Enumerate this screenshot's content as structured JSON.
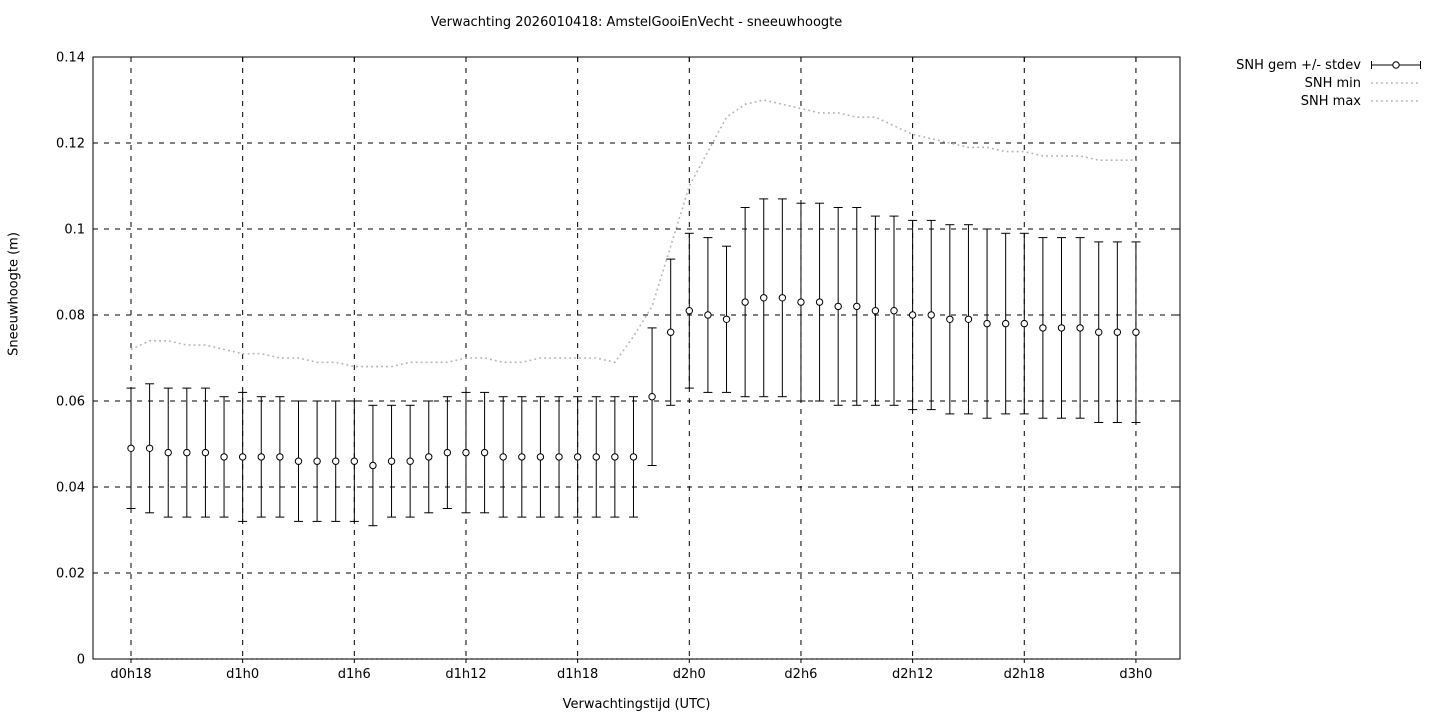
{
  "chart_data": {
    "type": "scatter",
    "title": "Verwachting 2026010418: AmstelGooiEnVecht - sneeuwhoogte",
    "xlabel": "Verwachtingstijd (UTC)",
    "ylabel": "Sneeuwhoogte (m)",
    "ylim": [
      0,
      0.14
    ],
    "grid": true,
    "legend_position": "top-right-outside",
    "colors": {
      "frame": "#000000",
      "grid": "#000000",
      "errorbar": "#000000",
      "dotted_line": "#b4b4b4",
      "background": "#ffffff"
    },
    "x_ticks": {
      "hours": [
        18,
        24,
        30,
        36,
        42,
        48,
        54,
        60,
        66,
        72
      ],
      "labels": [
        "d0h18",
        "d1h0",
        "d1h6",
        "d1h12",
        "d1h18",
        "d2h0",
        "d2h6",
        "d2h12",
        "d2h18",
        "d3h0"
      ]
    },
    "y_ticks": {
      "values": [
        0,
        0.02,
        0.04,
        0.06,
        0.08,
        0.1,
        0.12,
        0.14
      ],
      "labels": [
        "0",
        "0.02",
        "0.04",
        "0.06",
        "0.08",
        "0.1",
        "0.12",
        "0.14"
      ]
    },
    "hours": [
      18,
      19,
      20,
      21,
      22,
      23,
      24,
      25,
      26,
      27,
      28,
      29,
      30,
      31,
      32,
      33,
      34,
      35,
      36,
      37,
      38,
      39,
      40,
      41,
      42,
      43,
      44,
      45,
      46,
      47,
      48,
      49,
      50,
      51,
      52,
      53,
      54,
      55,
      56,
      57,
      58,
      59,
      60,
      61,
      62,
      63,
      64,
      65,
      66,
      67,
      68,
      69,
      70,
      71,
      72
    ],
    "series": [
      {
        "name": "SNH gem +/- stdev",
        "style": "errorbar",
        "mean": [
          0.049,
          0.049,
          0.048,
          0.048,
          0.048,
          0.047,
          0.047,
          0.047,
          0.047,
          0.046,
          0.046,
          0.046,
          0.046,
          0.045,
          0.046,
          0.046,
          0.047,
          0.048,
          0.048,
          0.048,
          0.047,
          0.047,
          0.047,
          0.047,
          0.047,
          0.047,
          0.047,
          0.047,
          0.061,
          0.076,
          0.081,
          0.08,
          0.079,
          0.083,
          0.084,
          0.084,
          0.083,
          0.083,
          0.082,
          0.082,
          0.081,
          0.081,
          0.08,
          0.08,
          0.079,
          0.079,
          0.078,
          0.078,
          0.078,
          0.077,
          0.077,
          0.077,
          0.076,
          0.076,
          0.076
        ],
        "stdev": [
          0.014,
          0.015,
          0.015,
          0.015,
          0.015,
          0.014,
          0.015,
          0.014,
          0.014,
          0.014,
          0.014,
          0.014,
          0.014,
          0.014,
          0.013,
          0.013,
          0.013,
          0.013,
          0.014,
          0.014,
          0.014,
          0.014,
          0.014,
          0.014,
          0.014,
          0.014,
          0.014,
          0.014,
          0.016,
          0.017,
          0.018,
          0.018,
          0.017,
          0.022,
          0.023,
          0.023,
          0.023,
          0.023,
          0.023,
          0.023,
          0.022,
          0.022,
          0.022,
          0.022,
          0.022,
          0.022,
          0.022,
          0.021,
          0.021,
          0.021,
          0.021,
          0.021,
          0.021,
          0.021,
          0.021
        ]
      },
      {
        "name": "SNH min",
        "style": "dotted",
        "values": [
          0,
          0,
          0,
          0,
          0,
          0,
          0,
          0,
          0,
          0,
          0,
          0,
          0,
          0,
          0,
          0,
          0,
          0,
          0,
          0,
          0,
          0,
          0,
          0,
          0,
          0,
          0,
          0,
          0,
          0,
          0,
          0,
          0,
          0,
          0,
          0,
          0,
          0,
          0,
          0,
          0,
          0,
          0,
          0,
          0,
          0,
          0,
          0,
          0,
          0,
          0,
          0,
          0,
          0,
          0
        ]
      },
      {
        "name": "SNH max",
        "style": "dotted",
        "values": [
          0.072,
          0.074,
          0.074,
          0.073,
          0.073,
          0.072,
          0.071,
          0.071,
          0.07,
          0.07,
          0.069,
          0.069,
          0.068,
          0.068,
          0.068,
          0.069,
          0.069,
          0.069,
          0.07,
          0.07,
          0.069,
          0.069,
          0.07,
          0.07,
          0.07,
          0.07,
          0.069,
          0.075,
          0.082,
          0.096,
          0.11,
          0.118,
          0.126,
          0.129,
          0.13,
          0.129,
          0.128,
          0.127,
          0.127,
          0.126,
          0.126,
          0.124,
          0.122,
          0.121,
          0.12,
          0.119,
          0.119,
          0.118,
          0.118,
          0.117,
          0.117,
          0.117,
          0.116,
          0.116,
          0.116
        ]
      }
    ]
  }
}
